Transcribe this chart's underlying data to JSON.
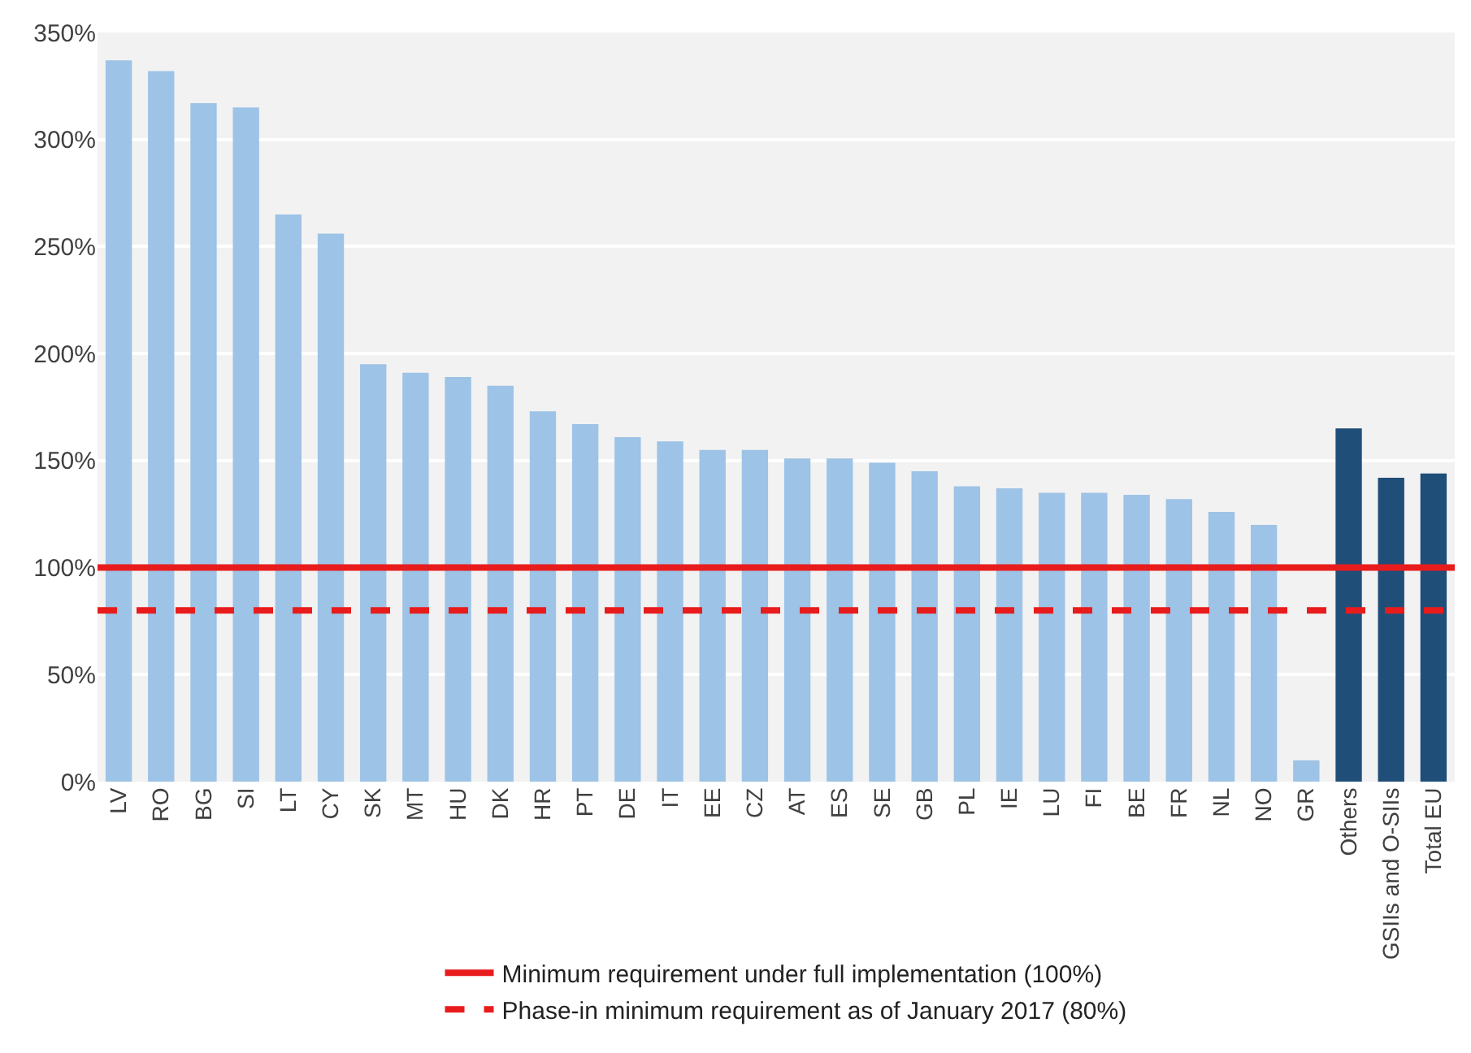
{
  "chart_data": {
    "type": "bar",
    "categories": [
      "LV",
      "RO",
      "BG",
      "SI",
      "LT",
      "CY",
      "SK",
      "MT",
      "HU",
      "DK",
      "HR",
      "PT",
      "DE",
      "IT",
      "EE",
      "CZ",
      "AT",
      "ES",
      "SE",
      "GB",
      "PL",
      "IE",
      "LU",
      "FI",
      "BE",
      "FR",
      "NL",
      "NO",
      "GR",
      "Others",
      "GSIIs and O-SIIs",
      "Total EU"
    ],
    "values": [
      337,
      332,
      317,
      315,
      265,
      256,
      195,
      191,
      189,
      185,
      173,
      167,
      161,
      159,
      155,
      155,
      151,
      151,
      149,
      145,
      138,
      137,
      135,
      135,
      134,
      132,
      126,
      120,
      10,
      165,
      142,
      144
    ],
    "colors": [
      "#9dc3e6",
      "#9dc3e6",
      "#9dc3e6",
      "#9dc3e6",
      "#9dc3e6",
      "#9dc3e6",
      "#9dc3e6",
      "#9dc3e6",
      "#9dc3e6",
      "#9dc3e6",
      "#9dc3e6",
      "#9dc3e6",
      "#9dc3e6",
      "#9dc3e6",
      "#9dc3e6",
      "#9dc3e6",
      "#9dc3e6",
      "#9dc3e6",
      "#9dc3e6",
      "#9dc3e6",
      "#9dc3e6",
      "#9dc3e6",
      "#9dc3e6",
      "#9dc3e6",
      "#9dc3e6",
      "#9dc3e6",
      "#9dc3e6",
      "#9dc3e6",
      "#9dc3e6",
      "#1f4e79",
      "#1f4e79",
      "#1f4e79"
    ],
    "ylim": [
      0,
      350
    ],
    "yticks": [
      {
        "value": 0,
        "label": "0%"
      },
      {
        "value": 50,
        "label": "50%"
      },
      {
        "value": 100,
        "label": "100%"
      },
      {
        "value": 150,
        "label": "150%"
      },
      {
        "value": 200,
        "label": "200%"
      },
      {
        "value": 250,
        "label": "250%"
      },
      {
        "value": 300,
        "label": "300%"
      },
      {
        "value": 350,
        "label": "350%"
      }
    ],
    "grid": "y",
    "legend": "bottom",
    "ref_lines": [
      {
        "axis": "y",
        "value": 100,
        "label": "Minimum requirement under full implementation (100%)",
        "color": "#e81c1c",
        "line_style": "solid"
      },
      {
        "axis": "y",
        "value": 80,
        "label": "Phase-in minimum requirement as of January 2017 (80%)",
        "color": "#e81c1c",
        "line_style": "dashed"
      }
    ]
  }
}
